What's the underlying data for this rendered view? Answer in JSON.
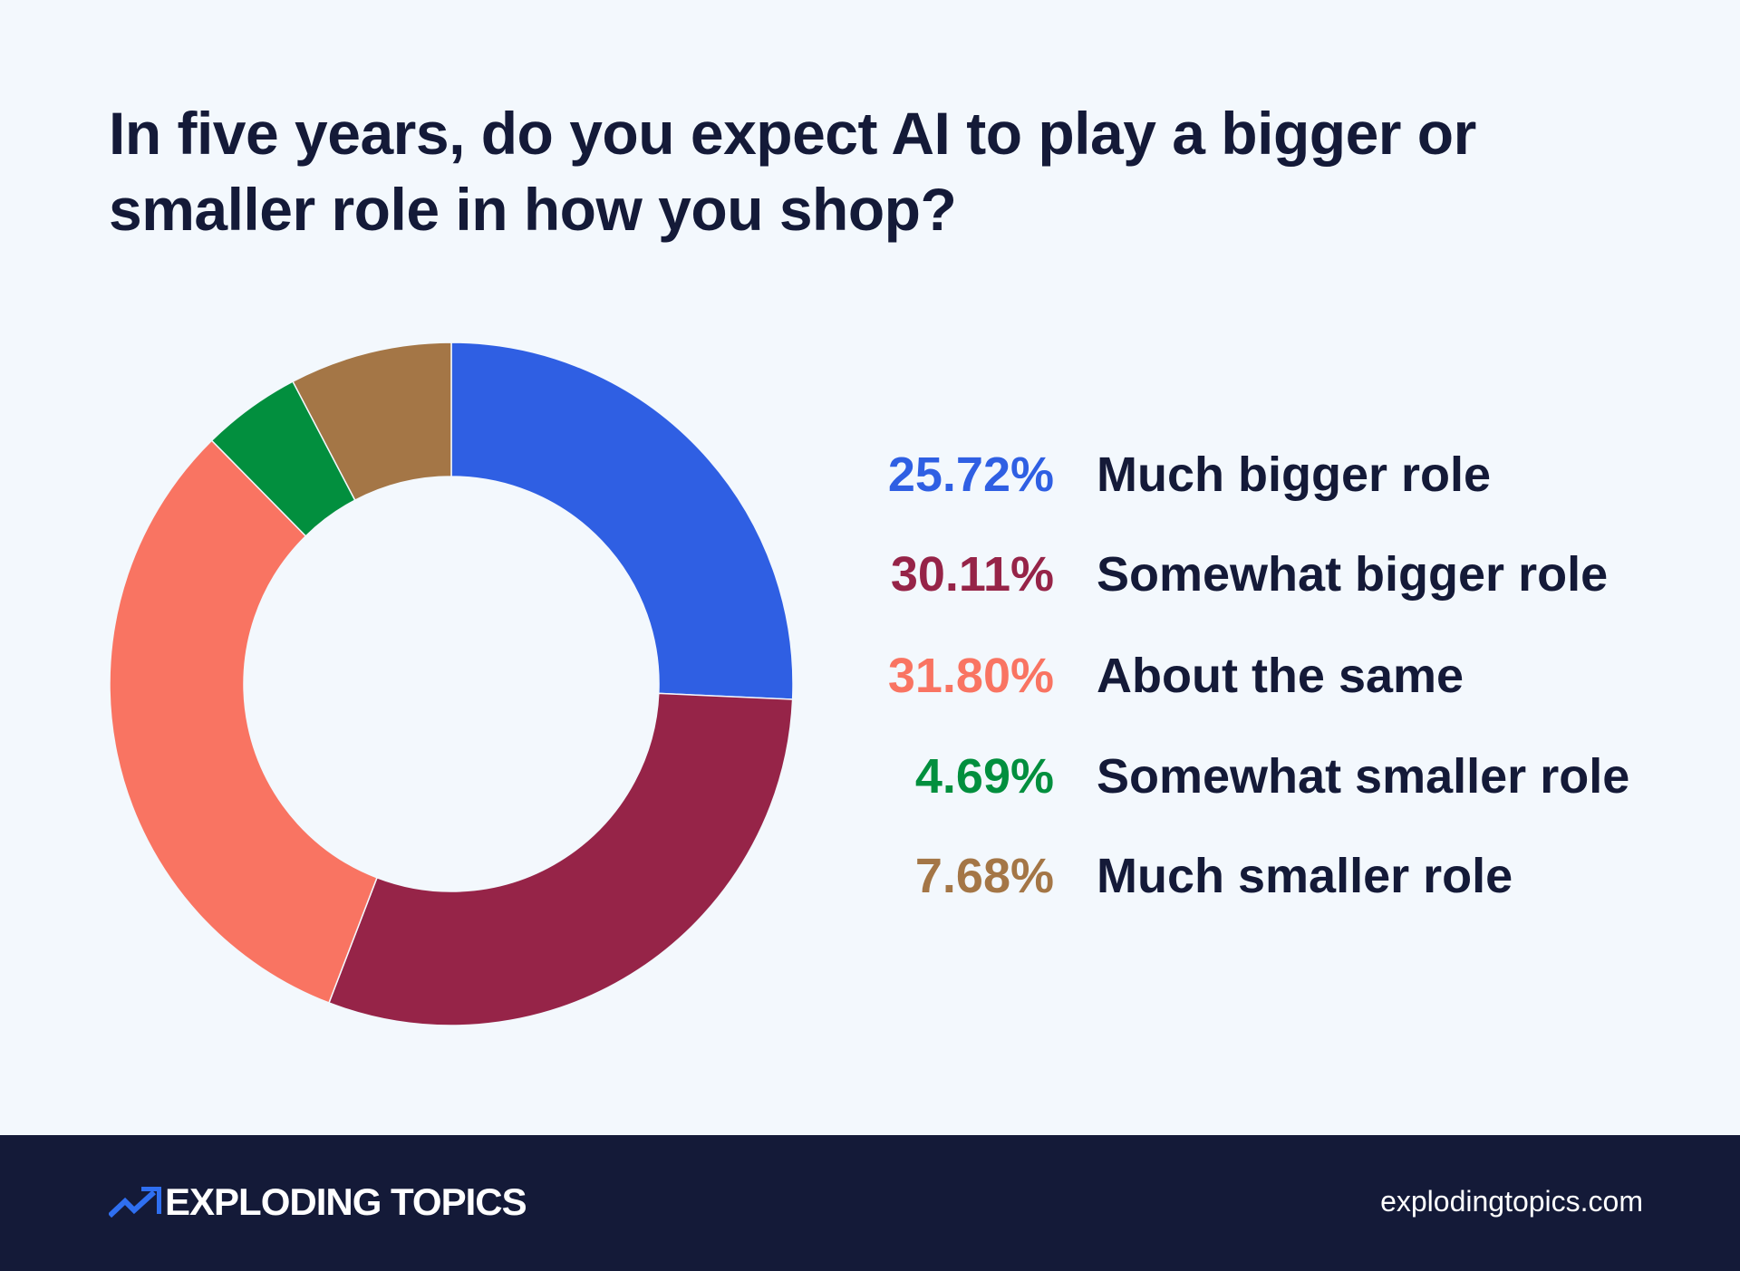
{
  "chart_data": {
    "type": "pie",
    "variant": "donut",
    "title": "In five years, do you expect AI to play a bigger or smaller role in how you shop?",
    "start_angle": "12 o'clock, clockwise",
    "legend_placement": "right",
    "categories": [
      "Much bigger role",
      "Somewhat bigger role",
      "About the same",
      "Somewhat smaller role",
      "Much smaller role"
    ],
    "values": [
      25.72,
      30.11,
      31.8,
      4.69,
      7.68
    ],
    "labels": [
      "25.72%",
      "30.11%",
      "31.80%",
      "4.69%",
      "7.68%"
    ],
    "colors": [
      "#2f5fe3",
      "#962448",
      "#f97462",
      "#028f3e",
      "#a47646"
    ]
  },
  "footer": {
    "brand": "EXPLODING TOPICS",
    "url": "explodingtopics.com",
    "background": "#141a38",
    "logo_icon": "trending-up-arrow-icon"
  }
}
